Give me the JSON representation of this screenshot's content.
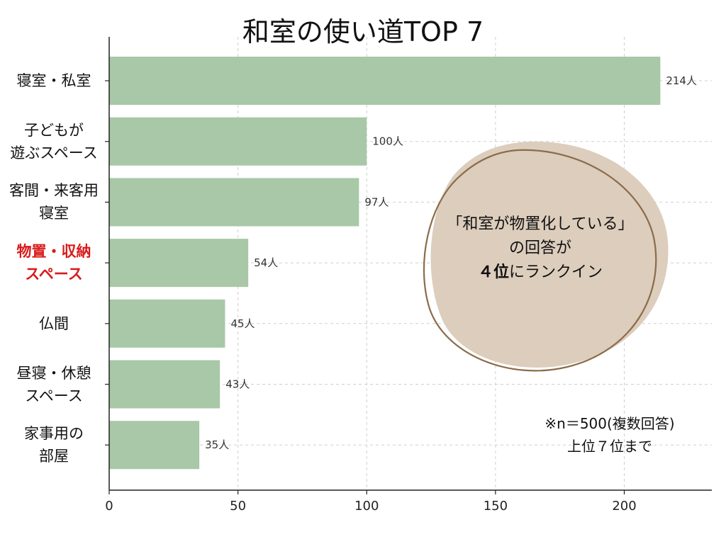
{
  "chart_data": {
    "type": "bar",
    "orientation": "horizontal",
    "title": "和室の使い道TOP 7",
    "categories": [
      "寝室・私室",
      "子どもが遊ぶスペース",
      "客間・来客用寝室",
      "物置・収納スペース",
      "仏間",
      "昼寝・休憩スペース",
      "家事用の部屋"
    ],
    "category_lines": [
      [
        "寝室・私室"
      ],
      [
        "子どもが",
        "遊ぶスペース"
      ],
      [
        "客間・来客用",
        "寝室"
      ],
      [
        "物置・収納",
        "スペース"
      ],
      [
        "仏間"
      ],
      [
        "昼寝・休憩",
        "スペース"
      ],
      [
        "家事用の",
        "部屋"
      ]
    ],
    "values": [
      214,
      100,
      97,
      54,
      45,
      43,
      35
    ],
    "value_labels": [
      "214人",
      "100人",
      "97人",
      "54人",
      "45人",
      "43人",
      "35人"
    ],
    "highlight_index": 3,
    "xlim": [
      0,
      234
    ],
    "xticks": [
      0,
      50,
      100,
      150,
      200
    ],
    "grid": true,
    "bar_color": "#a8c8a7",
    "highlight_text_color": "#d81b1b",
    "annotation": {
      "line1": "「和室が物置化している」",
      "line2": "の回答が",
      "rank": "４位",
      "rank_suffix": "にランクイン",
      "blob_fill": "#dccdbd",
      "outline_color": "#8b6b4a"
    },
    "note": {
      "line1": "※n＝500(複数回答)",
      "line2": "上位７位まで"
    }
  }
}
